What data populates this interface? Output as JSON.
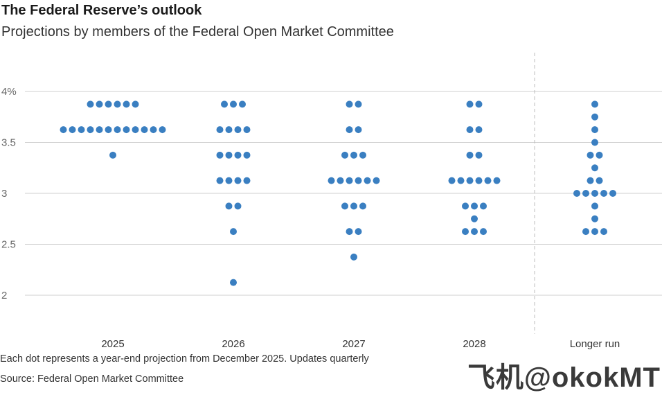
{
  "title": "The Federal Reserve’s outlook",
  "subtitle": "Projections by members of the Federal Open Market Committee",
  "note": "Each dot represents a year-end projection from December 2025. Updates quarterly",
  "source": "Source: Federal Open Market Committee",
  "watermark": "飞机@okokMT",
  "colors": {
    "dot": "#3a7fc1",
    "grid": "#cfcfcf",
    "divider": "#bdbdbd"
  },
  "chart_data": {
    "type": "scatter",
    "ylim": [
      1.6,
      4.35
    ],
    "yticks": [
      {
        "value": 4,
        "label": "4%"
      },
      {
        "value": 3.5,
        "label": "3.5"
      },
      {
        "value": 3,
        "label": "3"
      },
      {
        "value": 2.5,
        "label": "2.5"
      },
      {
        "value": 2,
        "label": "2"
      }
    ],
    "grid": true,
    "divider_before": "Longer run",
    "categories": [
      {
        "label": "2025",
        "dots": [
          {
            "rate": 3.875,
            "count": 6
          },
          {
            "rate": 3.625,
            "count": 12
          },
          {
            "rate": 3.375,
            "count": 1
          }
        ]
      },
      {
        "label": "2026",
        "dots": [
          {
            "rate": 3.875,
            "count": 3
          },
          {
            "rate": 3.625,
            "count": 4
          },
          {
            "rate": 3.375,
            "count": 4
          },
          {
            "rate": 3.125,
            "count": 4
          },
          {
            "rate": 2.875,
            "count": 2
          },
          {
            "rate": 2.625,
            "count": 1
          },
          {
            "rate": 2.125,
            "count": 1
          }
        ]
      },
      {
        "label": "2027",
        "dots": [
          {
            "rate": 3.875,
            "count": 2
          },
          {
            "rate": 3.625,
            "count": 2
          },
          {
            "rate": 3.375,
            "count": 3
          },
          {
            "rate": 3.125,
            "count": 6
          },
          {
            "rate": 2.875,
            "count": 3
          },
          {
            "rate": 2.625,
            "count": 2
          },
          {
            "rate": 2.375,
            "count": 1
          }
        ]
      },
      {
        "label": "2028",
        "dots": [
          {
            "rate": 3.875,
            "count": 2
          },
          {
            "rate": 3.625,
            "count": 2
          },
          {
            "rate": 3.375,
            "count": 2
          },
          {
            "rate": 3.125,
            "count": 6
          },
          {
            "rate": 2.875,
            "count": 3
          },
          {
            "rate": 2.75,
            "count": 1
          },
          {
            "rate": 2.625,
            "count": 3
          }
        ]
      },
      {
        "label": "Longer run",
        "dots": [
          {
            "rate": 3.875,
            "count": 1
          },
          {
            "rate": 3.75,
            "count": 1
          },
          {
            "rate": 3.625,
            "count": 1
          },
          {
            "rate": 3.5,
            "count": 1
          },
          {
            "rate": 3.375,
            "count": 2
          },
          {
            "rate": 3.25,
            "count": 1
          },
          {
            "rate": 3.125,
            "count": 2
          },
          {
            "rate": 3.0,
            "count": 5
          },
          {
            "rate": 2.875,
            "count": 1
          },
          {
            "rate": 2.75,
            "count": 1
          },
          {
            "rate": 2.625,
            "count": 3
          }
        ]
      }
    ]
  }
}
